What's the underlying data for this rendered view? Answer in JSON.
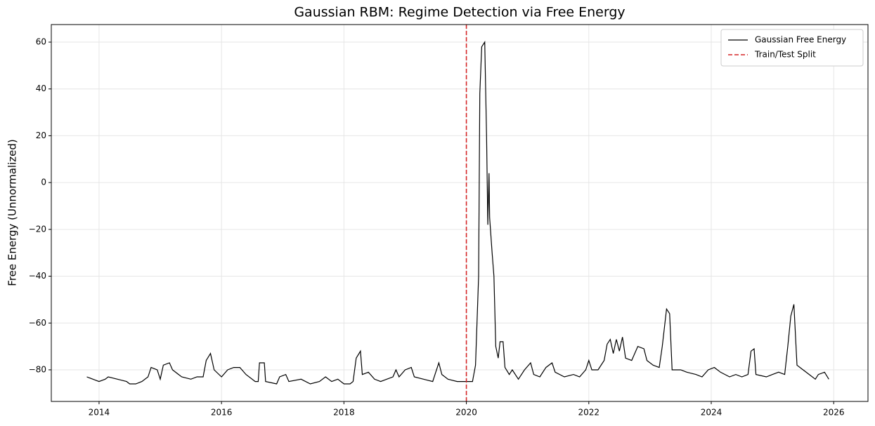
{
  "chart_data": {
    "type": "line",
    "title": "Gaussian RBM: Regime Detection via Free Energy",
    "y_label": "Free Energy (Unnormalized)",
    "grid": true,
    "legend": "upper right",
    "xlim": [
      2013.22,
      2026.56
    ],
    "xticks": [
      2014,
      2016,
      2018,
      2020,
      2022,
      2024,
      2026
    ],
    "ylim": [
      -93.5,
      67.5
    ],
    "yticks": [
      {
        "value": -80,
        "label": "−80"
      },
      {
        "value": -60,
        "label": "−60"
      },
      {
        "value": -40,
        "label": "−40"
      },
      {
        "value": -20,
        "label": "−20"
      },
      0,
      20,
      40,
      60
    ],
    "series": [
      {
        "name": "Gaussian Free Energy",
        "color": "#000000",
        "x": [
          2013.8,
          2013.9,
          2014.0,
          2014.1,
          2014.15,
          2014.3,
          2014.45,
          2014.5,
          2014.6,
          2014.7,
          2014.8,
          2014.85,
          2014.95,
          2015.0,
          2015.05,
          2015.15,
          2015.2,
          2015.35,
          2015.5,
          2015.6,
          2015.7,
          2015.75,
          2015.82,
          2015.88,
          2016.0,
          2016.1,
          2016.2,
          2016.3,
          2016.4,
          2016.55,
          2016.6,
          2016.62,
          2016.7,
          2016.72,
          2016.9,
          2016.95,
          2017.05,
          2017.1,
          2017.3,
          2017.45,
          2017.6,
          2017.7,
          2017.8,
          2017.9,
          2018.0,
          2018.1,
          2018.15,
          2018.2,
          2018.27,
          2018.3,
          2018.4,
          2018.5,
          2018.6,
          2018.7,
          2018.8,
          2018.85,
          2018.9,
          2019.0,
          2019.1,
          2019.15,
          2019.3,
          2019.45,
          2019.5,
          2019.55,
          2019.6,
          2019.7,
          2019.85,
          2020.0,
          2020.1,
          2020.15,
          2020.2,
          2020.22,
          2020.25,
          2020.3,
          2020.33,
          2020.35,
          2020.37,
          2020.38,
          2020.42,
          2020.45,
          2020.48,
          2020.52,
          2020.55,
          2020.6,
          2020.63,
          2020.7,
          2020.75,
          2020.85,
          2020.95,
          2021.05,
          2021.1,
          2021.2,
          2021.3,
          2021.4,
          2021.45,
          2021.6,
          2021.75,
          2021.85,
          2021.95,
          2022.0,
          2022.05,
          2022.15,
          2022.25,
          2022.3,
          2022.35,
          2022.4,
          2022.45,
          2022.5,
          2022.55,
          2022.6,
          2022.7,
          2022.8,
          2022.9,
          2022.95,
          2023.05,
          2023.15,
          2023.2,
          2023.27,
          2023.32,
          2023.36,
          2023.5,
          2023.6,
          2023.75,
          2023.85,
          2023.95,
          2024.05,
          2024.15,
          2024.3,
          2024.4,
          2024.5,
          2024.6,
          2024.65,
          2024.7,
          2024.73,
          2024.9,
          2025.0,
          2025.1,
          2025.2,
          2025.25,
          2025.3,
          2025.35,
          2025.4,
          2025.5,
          2025.6,
          2025.7,
          2025.75,
          2025.85,
          2025.92
        ],
        "values": [
          -83,
          -84,
          -85,
          -84,
          -83,
          -84,
          -85,
          -86,
          -86,
          -85,
          -83,
          -79,
          -80,
          -84,
          -78,
          -77,
          -80,
          -83,
          -84,
          -83,
          -83,
          -76,
          -73,
          -80,
          -83,
          -80,
          -79,
          -79,
          -82,
          -85,
          -85,
          -77,
          -77,
          -85,
          -86,
          -83,
          -82,
          -85,
          -84,
          -86,
          -85,
          -83,
          -85,
          -84,
          -86,
          -86,
          -85,
          -75,
          -72,
          -82,
          -81,
          -84,
          -85,
          -84,
          -83,
          -80,
          -83,
          -80,
          -79,
          -83,
          -84,
          -85,
          -81,
          -77,
          -82,
          -84,
          -85,
          -85,
          -85,
          -78,
          -40,
          38,
          58,
          60,
          20,
          -18,
          4,
          -15,
          -30,
          -40,
          -70,
          -75,
          -68,
          -68,
          -79,
          -82,
          -80,
          -84,
          -80,
          -77,
          -82,
          -83,
          -79,
          -77,
          -81,
          -83,
          -82,
          -83,
          -80,
          -76,
          -80,
          -80,
          -76,
          -69,
          -67,
          -73,
          -67,
          -72,
          -66,
          -75,
          -76,
          -70,
          -71,
          -76,
          -78,
          -79,
          -70,
          -54,
          -56,
          -80,
          -80,
          -81,
          -82,
          -83,
          -80,
          -79,
          -81,
          -83,
          -82,
          -83,
          -82,
          -72,
          -71,
          -82,
          -83,
          -82,
          -81,
          -82,
          -70,
          -57,
          -52,
          -78,
          -80,
          -82,
          -84,
          -82,
          -81,
          -84
        ]
      }
    ],
    "vlines": [
      {
        "name": "Train/Test Split",
        "x": 2020,
        "color": "#d62728"
      }
    ]
  }
}
